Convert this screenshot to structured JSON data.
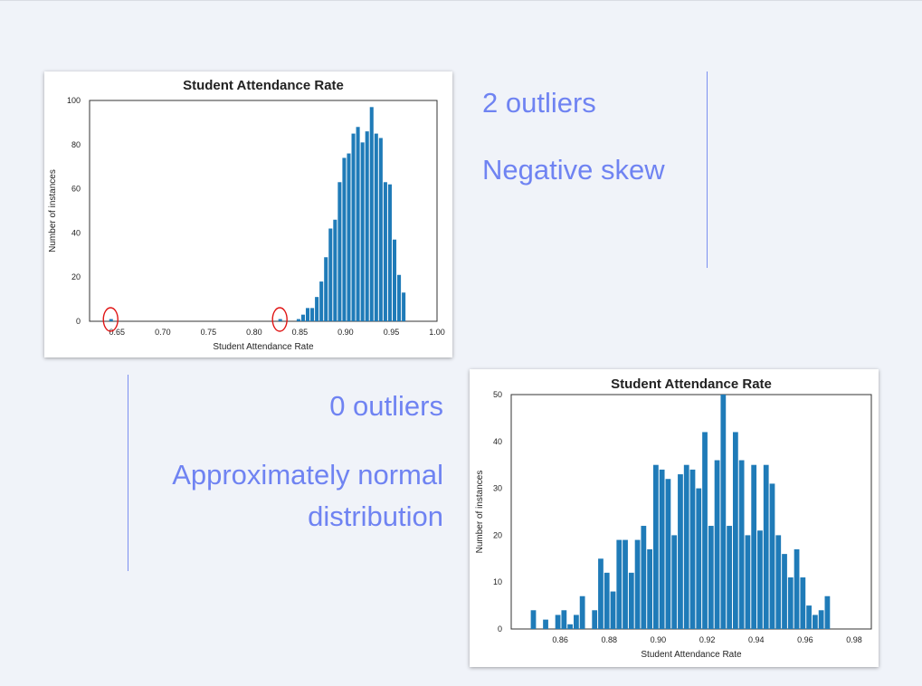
{
  "colors": {
    "bar": "#1f7bb8",
    "note": "#6f83f2",
    "marker": "#e01515"
  },
  "charts": [
    {
      "chart_data": {
        "type": "bar",
        "title": "Student Attendance Rate",
        "xlabel": "Student Attendance Rate",
        "ylabel": "Number of instances",
        "xlim": [
          0.62,
          1.0
        ],
        "ylim": [
          0,
          100
        ],
        "xticks": [
          "0.65",
          "0.70",
          "0.75",
          "0.80",
          "0.85",
          "0.90",
          "0.95",
          "1.00"
        ],
        "xtick_values": [
          0.65,
          0.7,
          0.75,
          0.8,
          0.85,
          0.9,
          0.95,
          1.0
        ],
        "yticks": [
          "0",
          "20",
          "40",
          "60",
          "80",
          "100"
        ],
        "ytick_values": [
          0,
          20,
          40,
          60,
          80,
          100
        ],
        "bin_width": 0.005,
        "bin_starts": [
          0.641,
          0.826,
          0.846,
          0.851,
          0.856,
          0.861,
          0.866,
          0.871,
          0.876,
          0.881,
          0.886,
          0.891,
          0.896,
          0.901,
          0.906,
          0.911,
          0.916,
          0.921,
          0.926,
          0.931,
          0.936,
          0.941,
          0.946,
          0.951,
          0.956,
          0.961,
          0.966,
          0.971,
          0.976
        ],
        "values": [
          1,
          1,
          1,
          3,
          6,
          6,
          11,
          18,
          29,
          42,
          46,
          63,
          74,
          76,
          85,
          88,
          81,
          86,
          97,
          85,
          83,
          63,
          62,
          37,
          21,
          13,
          0,
          0,
          0
        ],
        "grid": false,
        "outliers_marked": [
          0.643,
          0.828
        ]
      },
      "notes": [
        "2 outliers",
        "Negative skew"
      ]
    },
    {
      "chart_data": {
        "type": "bar",
        "title": "Student Attendance Rate",
        "xlabel": "Student Attendance Rate",
        "ylabel": "Number of instances",
        "xlim": [
          0.84,
          0.987
        ],
        "ylim": [
          0,
          50
        ],
        "xticks": [
          "0.86",
          "0.88",
          "0.90",
          "0.92",
          "0.94",
          "0.96",
          "0.98"
        ],
        "xtick_values": [
          0.86,
          0.88,
          0.9,
          0.92,
          0.94,
          0.96,
          0.98
        ],
        "yticks": [
          "0",
          "10",
          "20",
          "30",
          "40",
          "50"
        ],
        "ytick_values": [
          0,
          10,
          20,
          30,
          40,
          50
        ],
        "bin_start": 0.8478,
        "bin_width": 0.0025,
        "values": [
          4,
          0,
          2,
          0,
          3,
          4,
          1,
          3,
          7,
          0,
          4,
          15,
          12,
          8,
          19,
          19,
          12,
          19,
          22,
          17,
          35,
          34,
          32,
          20,
          33,
          35,
          34,
          30,
          42,
          22,
          36,
          50,
          22,
          42,
          36,
          20,
          35,
          21,
          35,
          31,
          20,
          16,
          11,
          17,
          11,
          5,
          3,
          4,
          7
        ],
        "grid": false
      },
      "notes": [
        "0 outliers",
        "Approximately normal",
        "distribution"
      ]
    }
  ]
}
